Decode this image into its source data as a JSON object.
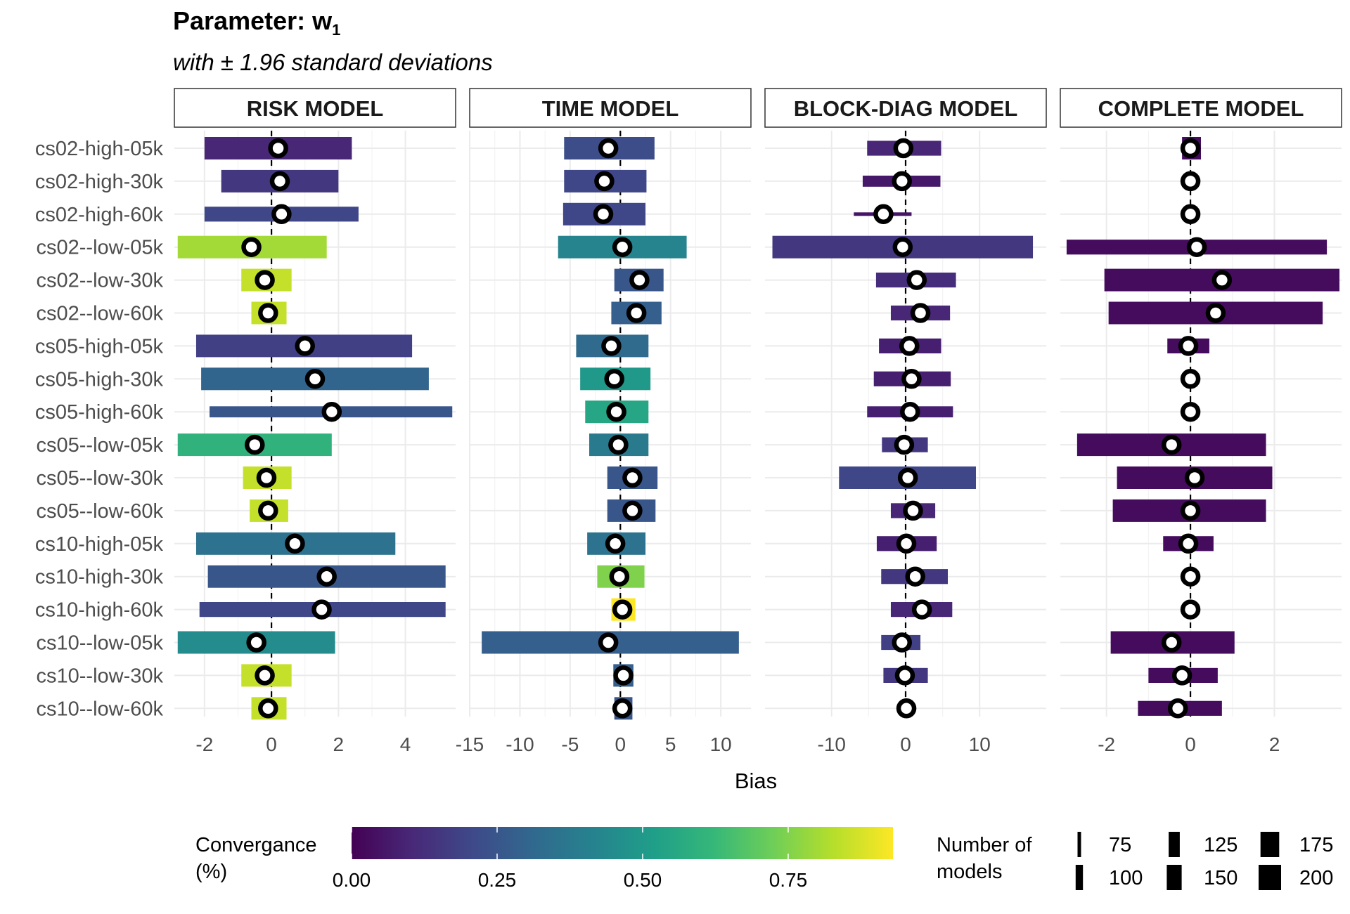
{
  "chart_data": {
    "type": "bar",
    "title": "Parameter: w",
    "title_subscript": "1",
    "subtitle": "with ± 1.96 standard deviations",
    "xlabel": "Bias",
    "rows": [
      "cs02-high-05k",
      "cs02-high-30k",
      "cs02-high-60k",
      "cs02--low-05k",
      "cs02--low-30k",
      "cs02--low-60k",
      "cs05-high-05k",
      "cs05-high-30k",
      "cs05-high-60k",
      "cs05--low-05k",
      "cs05--low-30k",
      "cs05--low-60k",
      "cs10-high-05k",
      "cs10-high-30k",
      "cs10-high-60k",
      "cs10--low-05k",
      "cs10--low-30k",
      "cs10--low-60k"
    ],
    "grid": true,
    "zero_line": "dashed",
    "panels": [
      {
        "name": "RISK MODEL",
        "xlim": [
          -2.9,
          5.5
        ],
        "ticks": [
          -2,
          0,
          2,
          4
        ],
        "tick_labels": [
          "-2",
          "0",
          "2",
          "4"
        ],
        "bias": [
          0.2,
          0.25,
          0.3,
          -0.6,
          -0.2,
          -0.1,
          1.0,
          1.3,
          1.8,
          -0.5,
          -0.15,
          -0.1,
          0.7,
          1.65,
          1.5,
          -0.45,
          -0.2,
          -0.1
        ],
        "low": [
          -2.0,
          -1.5,
          -2.0,
          -2.8,
          -0.9,
          -0.6,
          -2.25,
          -2.1,
          -1.85,
          -2.8,
          -0.85,
          -0.65,
          -2.25,
          -1.9,
          -2.15,
          -2.8,
          -0.9,
          -0.6
        ],
        "high": [
          2.4,
          2.0,
          2.6,
          1.65,
          0.6,
          0.45,
          4.2,
          4.7,
          5.4,
          1.8,
          0.6,
          0.5,
          3.7,
          5.2,
          5.2,
          1.9,
          0.6,
          0.45
        ],
        "convergence": [
          0.1,
          0.15,
          0.2,
          0.8,
          0.85,
          0.85,
          0.18,
          0.3,
          0.25,
          0.6,
          0.85,
          0.85,
          0.35,
          0.25,
          0.2,
          0.45,
          0.85,
          0.85
        ],
        "n_models": [
          200,
          200,
          150,
          200,
          200,
          200,
          200,
          200,
          125,
          200,
          200,
          200,
          200,
          200,
          150,
          200,
          200,
          200
        ]
      },
      {
        "name": "TIME MODEL",
        "xlim": [
          -15,
          13
        ],
        "ticks": [
          -15,
          -10,
          -5,
          0,
          5,
          10
        ],
        "tick_labels": [
          "-15",
          "-10",
          "-5",
          "0",
          "5",
          "10"
        ],
        "bias": [
          -1.2,
          -1.6,
          -1.7,
          0.2,
          1.9,
          1.6,
          -0.9,
          -0.6,
          -0.4,
          -0.2,
          1.2,
          1.2,
          -0.5,
          -0.1,
          0.2,
          -1.2,
          0.3,
          0.2
        ],
        "low": [
          -5.6,
          -5.6,
          -5.7,
          -6.2,
          -0.6,
          -0.9,
          -4.4,
          -4.0,
          -3.5,
          -3.1,
          -1.3,
          -1.3,
          -3.3,
          -2.3,
          -0.9,
          -13.8,
          -0.7,
          -0.6
        ],
        "high": [
          3.4,
          2.6,
          2.5,
          6.6,
          4.3,
          4.1,
          2.8,
          3.0,
          2.8,
          2.8,
          3.7,
          3.5,
          2.5,
          2.4,
          1.5,
          11.8,
          1.3,
          1.2
        ],
        "convergence": [
          0.22,
          0.2,
          0.2,
          0.42,
          0.25,
          0.28,
          0.32,
          0.5,
          0.55,
          0.38,
          0.25,
          0.25,
          0.35,
          0.75,
          0.95,
          0.28,
          0.28,
          0.25
        ],
        "n_models": [
          200,
          200,
          200,
          200,
          200,
          200,
          200,
          200,
          200,
          200,
          200,
          200,
          200,
          200,
          200,
          200,
          200,
          200
        ]
      },
      {
        "name": "BLOCK-DIAG MODEL",
        "xlim": [
          -19,
          19
        ],
        "ticks": [
          -10,
          0,
          10
        ],
        "tick_labels": [
          "-10",
          "0",
          "10"
        ],
        "bias": [
          -0.3,
          -0.5,
          -3.0,
          -0.4,
          1.5,
          2.0,
          0.5,
          0.8,
          0.6,
          -0.2,
          0.3,
          1.0,
          0.1,
          1.3,
          2.2,
          -0.5,
          -0.1,
          0.1
        ],
        "low": [
          -5.2,
          -5.8,
          -7.0,
          -18.0,
          -4.0,
          -2.0,
          -3.6,
          -4.3,
          -5.2,
          -3.2,
          -9.0,
          -2.0,
          -3.9,
          -3.3,
          -2.0,
          -3.3,
          -3.0,
          -0.3
        ],
        "high": [
          4.8,
          4.7,
          0.8,
          17.2,
          6.8,
          6.0,
          4.8,
          6.1,
          6.4,
          3.0,
          9.5,
          4.0,
          4.2,
          5.7,
          6.3,
          2.0,
          3.0,
          0.4
        ],
        "convergence": [
          0.1,
          0.06,
          0.05,
          0.15,
          0.12,
          0.1,
          0.08,
          0.08,
          0.08,
          0.15,
          0.2,
          0.1,
          0.08,
          0.15,
          0.1,
          0.18,
          0.15,
          0.1
        ],
        "n_models": [
          150,
          125,
          75,
          200,
          150,
          150,
          150,
          150,
          125,
          150,
          200,
          150,
          150,
          150,
          150,
          150,
          150,
          100
        ]
      },
      {
        "name": "COMPLETE MODEL",
        "xlim": [
          -3.1,
          3.6
        ],
        "ticks": [
          -2,
          0,
          2
        ],
        "tick_labels": [
          "-2",
          "0",
          "2"
        ],
        "bias": [
          0.0,
          0.0,
          0.0,
          0.15,
          0.75,
          0.6,
          -0.05,
          0.0,
          0.0,
          -0.45,
          0.1,
          0.0,
          -0.05,
          0.0,
          0.0,
          -0.45,
          -0.2,
          -0.3
        ],
        "low": [
          -0.2,
          -0.2,
          -0.2,
          -2.95,
          -2.05,
          -1.95,
          -0.55,
          -0.15,
          -0.15,
          -2.7,
          -1.75,
          -1.85,
          -0.65,
          -0.15,
          -0.15,
          -1.9,
          -1.0,
          -1.25
        ],
        "high": [
          0.25,
          0.15,
          0.15,
          3.25,
          3.55,
          3.15,
          0.45,
          0.15,
          0.15,
          1.8,
          1.95,
          1.8,
          0.55,
          0.15,
          0.15,
          1.05,
          0.65,
          0.75
        ],
        "convergence": [
          0.03,
          0.03,
          0.03,
          0.03,
          0.03,
          0.03,
          0.03,
          0.03,
          0.03,
          0.03,
          0.03,
          0.03,
          0.03,
          0.03,
          0.03,
          0.03,
          0.03,
          0.03
        ],
        "n_models": [
          200,
          125,
          125,
          150,
          200,
          200,
          150,
          125,
          125,
          200,
          200,
          200,
          150,
          125,
          125,
          200,
          150,
          150
        ]
      }
    ],
    "legend_convergence": {
      "title_line1": "Convergance",
      "title_line2": "(%)",
      "ticks": [
        0.0,
        0.25,
        0.5,
        0.75
      ],
      "tick_labels": [
        "0.00",
        "0.25",
        "0.50",
        "0.75"
      ],
      "range": [
        0.0,
        0.93
      ],
      "colors": [
        "#440154",
        "#482878",
        "#3e4989",
        "#31688e",
        "#26828e",
        "#1f9e89",
        "#35b779",
        "#6ece58",
        "#b5de2b",
        "#fde725"
      ]
    },
    "legend_size": {
      "title_line1": "Number of",
      "title_line2": "models",
      "values": [
        75,
        100,
        125,
        150,
        175,
        200
      ],
      "labels": [
        "75",
        "100",
        "125",
        "150",
        "175",
        "200"
      ]
    }
  }
}
